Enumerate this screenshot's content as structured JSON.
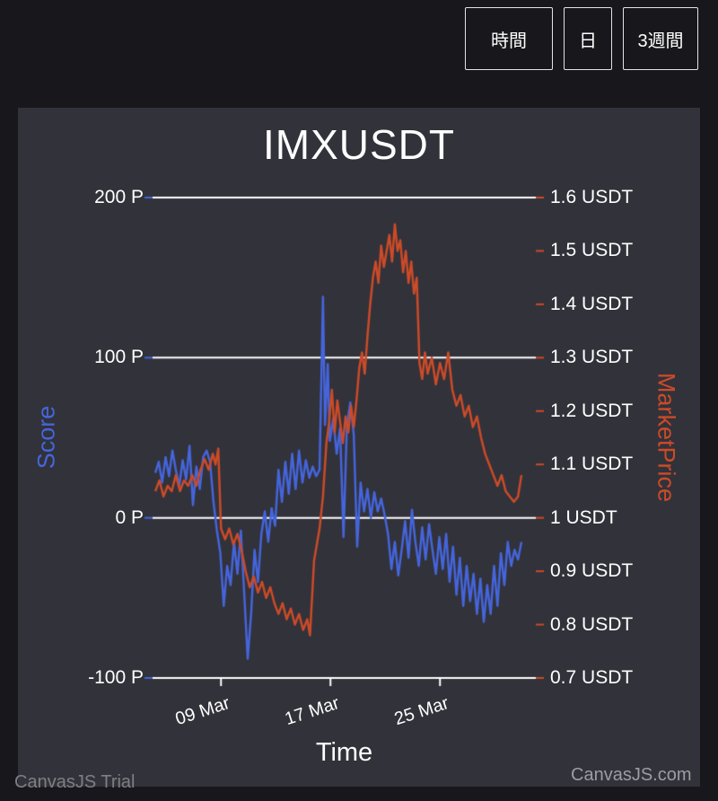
{
  "page": {
    "watermark_left": "CanvasJS Trial",
    "watermark_right": "CanvasJS.com",
    "background": "#17171C"
  },
  "toolbar": {
    "buttons": [
      {
        "label": "時間"
      },
      {
        "label": "日"
      },
      {
        "label": "3週間"
      }
    ]
  },
  "chart_data": {
    "type": "line",
    "title": "IMXUSDT",
    "xlabel": "Time",
    "background": "#32323A",
    "gridline_color": "#FFFFFF",
    "x_domain": [
      0,
      28
    ],
    "x_ticks": [
      {
        "day": 5,
        "label": "09 Mar"
      },
      {
        "day": 13,
        "label": "17 Mar"
      },
      {
        "day": 21,
        "label": "25 Mar"
      }
    ],
    "axes": {
      "left": {
        "title": "Score",
        "color": "#4565DB",
        "range": [
          -100,
          200
        ],
        "ticks": [
          "200 P",
          "100 P",
          "0 P",
          "-100 P"
        ],
        "tick_values": [
          200,
          100,
          0,
          -100
        ]
      },
      "right": {
        "title": "MarketPrice",
        "color": "#CC4B28",
        "range": [
          0.7,
          1.6
        ],
        "ticks": [
          "1.6 USDT",
          "1.5 USDT",
          "1.4 USDT",
          "1.3 USDT",
          "1.2 USDT",
          "1.1 USDT",
          "1 USDT",
          "0.9 USDT",
          "0.8 USDT",
          "0.7 USDT"
        ],
        "tick_values": [
          1.6,
          1.5,
          1.4,
          1.3,
          1.2,
          1.1,
          1.0,
          0.9,
          0.8,
          0.7
        ]
      }
    },
    "series": [
      {
        "name": "Score",
        "axis": "left",
        "color": "#4565DB",
        "points": [
          [
            0.2,
            28
          ],
          [
            0.45,
            35
          ],
          [
            0.7,
            22
          ],
          [
            0.95,
            38
          ],
          [
            1.2,
            26
          ],
          [
            1.45,
            42
          ],
          [
            1.7,
            30
          ],
          [
            1.95,
            20
          ],
          [
            2.2,
            36
          ],
          [
            2.45,
            24
          ],
          [
            2.7,
            45
          ],
          [
            2.95,
            8
          ],
          [
            3.2,
            32
          ],
          [
            3.45,
            18
          ],
          [
            3.7,
            38
          ],
          [
            3.95,
            42
          ],
          [
            4.2,
            35
          ],
          [
            4.45,
            10
          ],
          [
            4.7,
            -8
          ],
          [
            4.95,
            -22
          ],
          [
            5.2,
            -55
          ],
          [
            5.45,
            -30
          ],
          [
            5.7,
            -42
          ],
          [
            5.95,
            -15
          ],
          [
            6.2,
            -35
          ],
          [
            6.45,
            -8
          ],
          [
            6.7,
            -48
          ],
          [
            6.95,
            -88
          ],
          [
            7.2,
            -60
          ],
          [
            7.45,
            -20
          ],
          [
            7.7,
            -40
          ],
          [
            7.95,
            -10
          ],
          [
            8.2,
            4
          ],
          [
            8.45,
            -15
          ],
          [
            8.7,
            6
          ],
          [
            8.95,
            -5
          ],
          [
            9.2,
            30
          ],
          [
            9.45,
            10
          ],
          [
            9.7,
            35
          ],
          [
            9.95,
            15
          ],
          [
            10.2,
            40
          ],
          [
            10.45,
            18
          ],
          [
            10.7,
            42
          ],
          [
            10.95,
            22
          ],
          [
            11.2,
            36
          ],
          [
            11.45,
            25
          ],
          [
            11.7,
            32
          ],
          [
            11.95,
            26
          ],
          [
            12.2,
            30
          ],
          [
            12.45,
            138
          ],
          [
            12.6,
            58
          ],
          [
            12.8,
            96
          ],
          [
            12.95,
            48
          ],
          [
            13.2,
            62
          ],
          [
            13.45,
            40
          ],
          [
            13.7,
            56
          ],
          [
            13.95,
            -12
          ],
          [
            14.2,
            58
          ],
          [
            14.45,
            72
          ],
          [
            14.7,
            52
          ],
          [
            14.95,
            -18
          ],
          [
            15.2,
            22
          ],
          [
            15.45,
            4
          ],
          [
            15.7,
            18
          ],
          [
            15.95,
            0
          ],
          [
            16.2,
            16
          ],
          [
            16.45,
            4
          ],
          [
            16.7,
            12
          ],
          [
            16.95,
            2
          ],
          [
            17.2,
            -10
          ],
          [
            17.45,
            -32
          ],
          [
            17.7,
            -15
          ],
          [
            17.95,
            -36
          ],
          [
            18.2,
            -20
          ],
          [
            18.45,
            -2
          ],
          [
            18.7,
            -25
          ],
          [
            18.95,
            5
          ],
          [
            19.2,
            -15
          ],
          [
            19.45,
            -30
          ],
          [
            19.7,
            -6
          ],
          [
            19.95,
            -26
          ],
          [
            20.2,
            -4
          ],
          [
            20.45,
            -20
          ],
          [
            20.7,
            -35
          ],
          [
            20.95,
            -12
          ],
          [
            21.2,
            -32
          ],
          [
            21.45,
            -10
          ],
          [
            21.7,
            -40
          ],
          [
            21.95,
            -18
          ],
          [
            22.2,
            -48
          ],
          [
            22.45,
            -25
          ],
          [
            22.7,
            -55
          ],
          [
            22.95,
            -30
          ],
          [
            23.2,
            -52
          ],
          [
            23.45,
            -35
          ],
          [
            23.7,
            -60
          ],
          [
            23.95,
            -38
          ],
          [
            24.2,
            -65
          ],
          [
            24.45,
            -42
          ],
          [
            24.7,
            -60
          ],
          [
            24.95,
            -30
          ],
          [
            25.2,
            -55
          ],
          [
            25.45,
            -22
          ],
          [
            25.7,
            -42
          ],
          [
            25.95,
            -15
          ],
          [
            26.2,
            -30
          ],
          [
            26.45,
            -20
          ],
          [
            26.7,
            -26
          ],
          [
            26.95,
            -15
          ]
        ]
      },
      {
        "name": "MarketPrice",
        "axis": "right",
        "color": "#CC4B28",
        "points": [
          [
            0.2,
            1.05
          ],
          [
            0.5,
            1.07
          ],
          [
            0.8,
            1.04
          ],
          [
            1.1,
            1.06
          ],
          [
            1.4,
            1.05
          ],
          [
            1.7,
            1.08
          ],
          [
            2.0,
            1.05
          ],
          [
            2.3,
            1.07
          ],
          [
            2.6,
            1.06
          ],
          [
            2.9,
            1.08
          ],
          [
            3.2,
            1.06
          ],
          [
            3.5,
            1.09
          ],
          [
            3.8,
            1.11
          ],
          [
            4.1,
            1.09
          ],
          [
            4.4,
            1.12
          ],
          [
            4.6,
            1.1
          ],
          [
            4.8,
            1.13
          ],
          [
            5.0,
            0.98
          ],
          [
            5.3,
            0.96
          ],
          [
            5.6,
            0.98
          ],
          [
            5.9,
            0.95
          ],
          [
            6.2,
            0.97
          ],
          [
            6.5,
            0.94
          ],
          [
            6.8,
            0.9
          ],
          [
            7.1,
            0.87
          ],
          [
            7.4,
            0.89
          ],
          [
            7.7,
            0.86
          ],
          [
            8.0,
            0.88
          ],
          [
            8.3,
            0.85
          ],
          [
            8.6,
            0.87
          ],
          [
            8.9,
            0.84
          ],
          [
            9.2,
            0.82
          ],
          [
            9.5,
            0.84
          ],
          [
            9.8,
            0.81
          ],
          [
            10.1,
            0.83
          ],
          [
            10.4,
            0.8
          ],
          [
            10.7,
            0.82
          ],
          [
            11.0,
            0.79
          ],
          [
            11.3,
            0.81
          ],
          [
            11.5,
            0.78
          ],
          [
            11.8,
            0.92
          ],
          [
            12.0,
            0.95
          ],
          [
            12.2,
            0.98
          ],
          [
            12.45,
            1.04
          ],
          [
            12.7,
            1.14
          ],
          [
            12.9,
            1.18
          ],
          [
            13.1,
            1.24
          ],
          [
            13.3,
            1.16
          ],
          [
            13.5,
            1.22
          ],
          [
            13.7,
            1.18
          ],
          [
            13.9,
            1.14
          ],
          [
            14.1,
            1.19
          ],
          [
            14.3,
            1.16
          ],
          [
            14.5,
            1.21
          ],
          [
            14.7,
            1.17
          ],
          [
            14.9,
            1.22
          ],
          [
            15.1,
            1.28
          ],
          [
            15.3,
            1.31
          ],
          [
            15.5,
            1.27
          ],
          [
            15.7,
            1.34
          ],
          [
            15.9,
            1.4
          ],
          [
            16.1,
            1.45
          ],
          [
            16.3,
            1.48
          ],
          [
            16.5,
            1.44
          ],
          [
            16.7,
            1.51
          ],
          [
            16.9,
            1.47
          ],
          [
            17.1,
            1.5
          ],
          [
            17.3,
            1.53
          ],
          [
            17.5,
            1.48
          ],
          [
            17.7,
            1.55
          ],
          [
            17.9,
            1.5
          ],
          [
            18.1,
            1.52
          ],
          [
            18.3,
            1.46
          ],
          [
            18.5,
            1.5
          ],
          [
            18.7,
            1.44
          ],
          [
            18.9,
            1.48
          ],
          [
            19.1,
            1.42
          ],
          [
            19.3,
            1.45
          ],
          [
            19.5,
            1.29
          ],
          [
            19.7,
            1.26
          ],
          [
            19.9,
            1.31
          ],
          [
            20.1,
            1.27
          ],
          [
            20.4,
            1.3
          ],
          [
            20.7,
            1.25
          ],
          [
            21.0,
            1.29
          ],
          [
            21.3,
            1.26
          ],
          [
            21.6,
            1.31
          ],
          [
            21.9,
            1.24
          ],
          [
            22.2,
            1.21
          ],
          [
            22.5,
            1.23
          ],
          [
            22.8,
            1.19
          ],
          [
            23.1,
            1.21
          ],
          [
            23.4,
            1.17
          ],
          [
            23.7,
            1.19
          ],
          [
            24.0,
            1.15
          ],
          [
            24.3,
            1.12
          ],
          [
            24.6,
            1.1
          ],
          [
            24.9,
            1.08
          ],
          [
            25.2,
            1.06
          ],
          [
            25.5,
            1.08
          ],
          [
            25.8,
            1.05
          ],
          [
            26.1,
            1.04
          ],
          [
            26.4,
            1.03
          ],
          [
            26.7,
            1.04
          ],
          [
            26.95,
            1.08
          ]
        ]
      }
    ]
  }
}
